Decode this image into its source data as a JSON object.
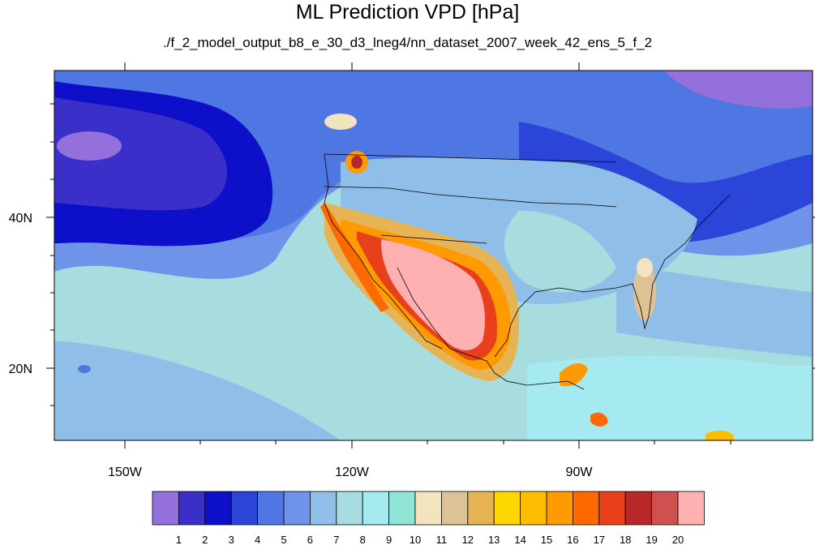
{
  "title": "ML Prediction VPD [hPa]",
  "subtitle": "./f_2_model_output_b8_e_30_d3_lneg4/nn_dataset_2007_week_42_ens_5_f_2",
  "lon_labels": [
    "150W",
    "120W",
    "90W"
  ],
  "lat_labels": [
    "40N",
    "20N"
  ],
  "colorbar": {
    "colors": [
      "#9370db",
      "#3b2fc9",
      "#0d10c8",
      "#2b45d9",
      "#4e77e3",
      "#6f93e8",
      "#8fbfe8",
      "#a8dde0",
      "#a4eaf0",
      "#8fe6d6",
      "#f3e4c0",
      "#dcc294",
      "#e6b455",
      "#ffd700",
      "#ffbd00",
      "#ff9a00",
      "#ff6a00",
      "#e8401a",
      "#b82828",
      "#d05050",
      "#ffb0b0"
    ],
    "ticks": [
      "1",
      "2",
      "3",
      "4",
      "5",
      "6",
      "7",
      "8",
      "9",
      "10",
      "11",
      "12",
      "13",
      "14",
      "15",
      "16",
      "17",
      "18",
      "19",
      "20"
    ]
  }
}
